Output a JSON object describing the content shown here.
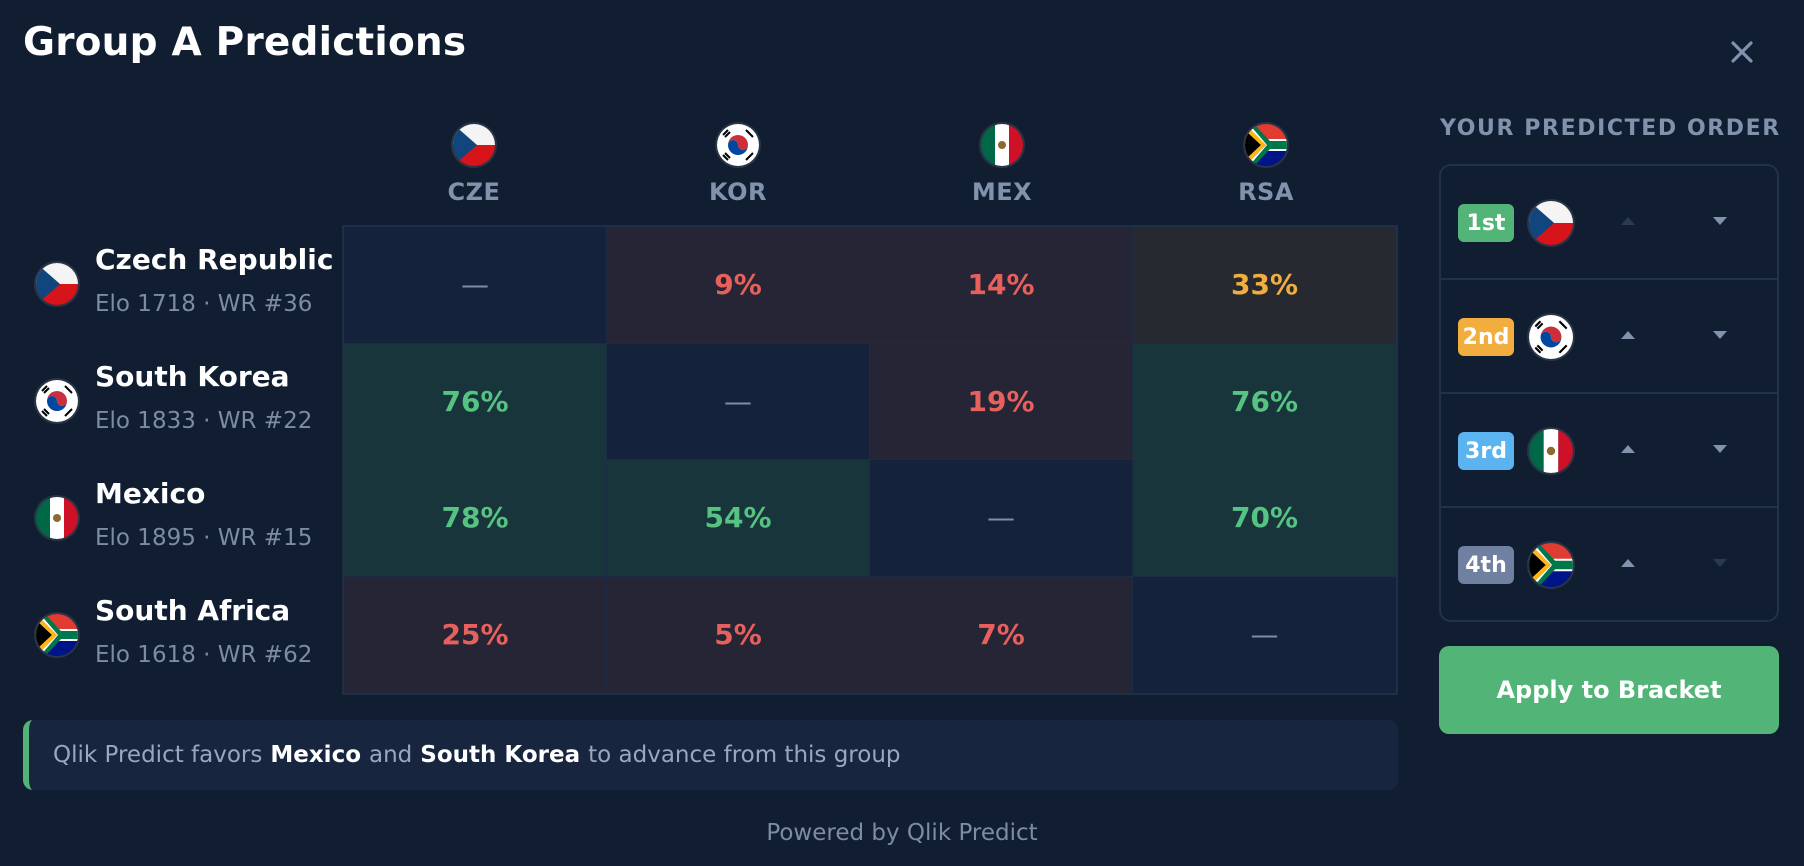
{
  "header": {
    "title": "Group A Predictions"
  },
  "teams": [
    {
      "code": "CZE",
      "name": "Czech Republic",
      "meta": "Elo 1718 · WR #36",
      "flag": "czech-flag-icon"
    },
    {
      "code": "KOR",
      "name": "South Korea",
      "meta": "Elo 1833 · WR #22",
      "flag": "south-korea-flag-icon"
    },
    {
      "code": "MEX",
      "name": "Mexico",
      "meta": "Elo 1895 · WR #15",
      "flag": "mexico-flag-icon"
    },
    {
      "code": "RSA",
      "name": "South Africa",
      "meta": "Elo 1618 · WR #62",
      "flag": "south-africa-flag-icon"
    }
  ],
  "matrix": [
    [
      "—",
      "9%",
      "14%",
      "33%"
    ],
    [
      "76%",
      "—",
      "19%",
      "76%"
    ],
    [
      "78%",
      "54%",
      "—",
      "70%"
    ],
    [
      "25%",
      "5%",
      "7%",
      "—"
    ]
  ],
  "summary": {
    "prefix": "Qlik Predict favors",
    "team1": "Mexico",
    "connector": "and",
    "team2": "South Korea",
    "suffix": "to advance from this group"
  },
  "footer": {
    "powered": "Powered by Qlik Predict"
  },
  "order": {
    "title": "YOUR PREDICTED ORDER",
    "rows": [
      {
        "rank": "1st",
        "flag": "czech-flag-icon",
        "color": "#52b577",
        "up_enabled": false,
        "down_enabled": true
      },
      {
        "rank": "2nd",
        "flag": "south-korea-flag-icon",
        "color": "#f2ad3f",
        "up_enabled": true,
        "down_enabled": true
      },
      {
        "rank": "3rd",
        "flag": "mexico-flag-icon",
        "color": "#5bb4ef",
        "up_enabled": true,
        "down_enabled": true
      },
      {
        "rank": "4th",
        "flag": "south-africa-flag-icon",
        "color": "#6f80a0",
        "up_enabled": true,
        "down_enabled": false
      }
    ],
    "apply_label": "Apply to Bracket"
  },
  "colors": {
    "background": "#111d31",
    "win": "#56c383",
    "lose": "#e8605c",
    "mid": "#f2ad3f",
    "accent": "#52b577"
  }
}
